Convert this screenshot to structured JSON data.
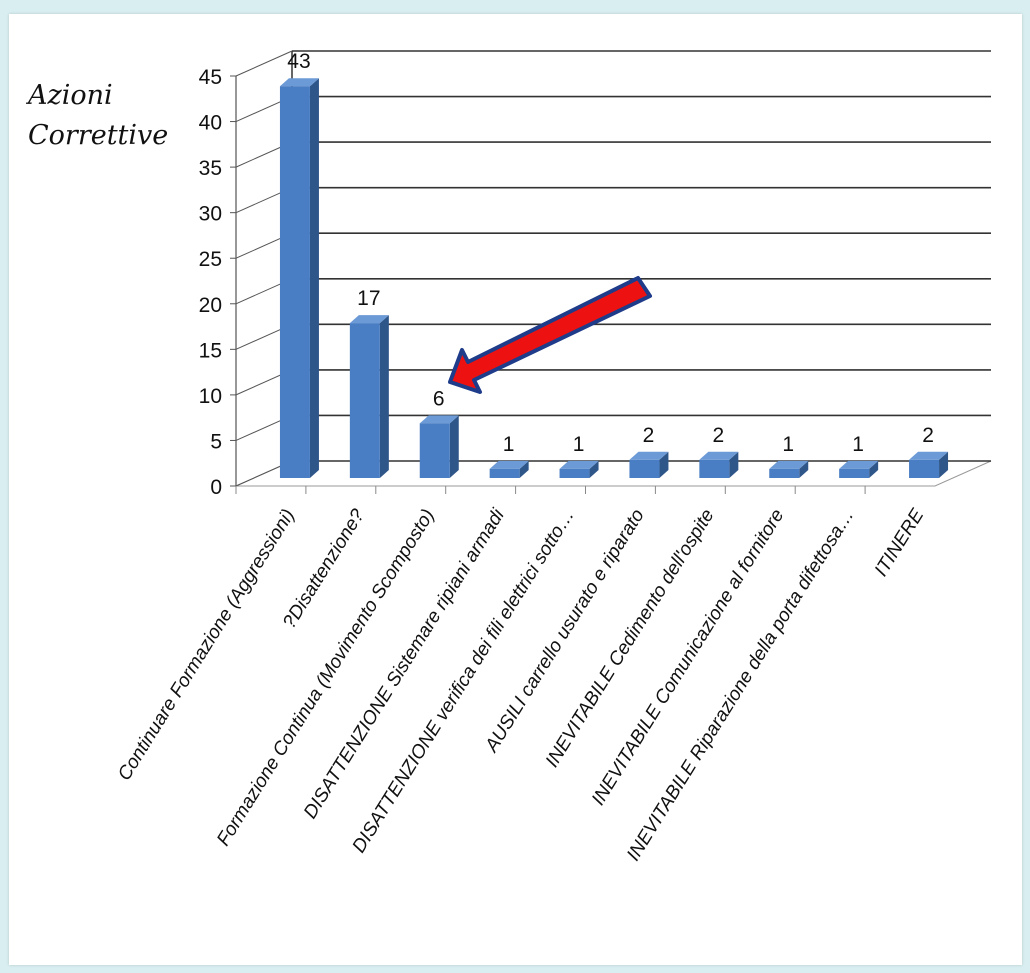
{
  "chart_data": {
    "type": "bar",
    "ylabel_lines": [
      "Azioni",
      "Correttive"
    ],
    "categories": [
      "Continuare Formazione (Aggressioni)",
      "?Disattenzione?",
      "Formazione Continua (Movimento Scomposto)",
      "DISATTENZIONE Sistemare ripiani armadi",
      "DISATTENZIONE verifica dei fili elettrici sotto…",
      "AUSILI carrello usurato e riparato",
      "INEVITABILE Cedimento dell'ospite",
      "INEVITABILE Comunicazione al fornitore",
      "INEVITABILE Riparazione della porta difettosa…",
      "ITINERE"
    ],
    "values": [
      43,
      17,
      6,
      1,
      1,
      2,
      2,
      1,
      1,
      2
    ],
    "ylim": [
      0,
      45
    ],
    "yticks": [
      "0",
      "5",
      "10",
      "15",
      "20",
      "25",
      "30",
      "35",
      "40",
      "45"
    ],
    "grid": true,
    "colors": {
      "bar_front": "#4a7ec4",
      "bar_side": "#2f5689",
      "bar_top": "#6c9ad6",
      "arrow_fill": "#ee1111",
      "arrow_stroke": "#1f3c8a",
      "grid": "#333333"
    },
    "annotation": {
      "type": "arrow",
      "points_to": "Formazione Continua (Movimento Scomposto)"
    }
  }
}
